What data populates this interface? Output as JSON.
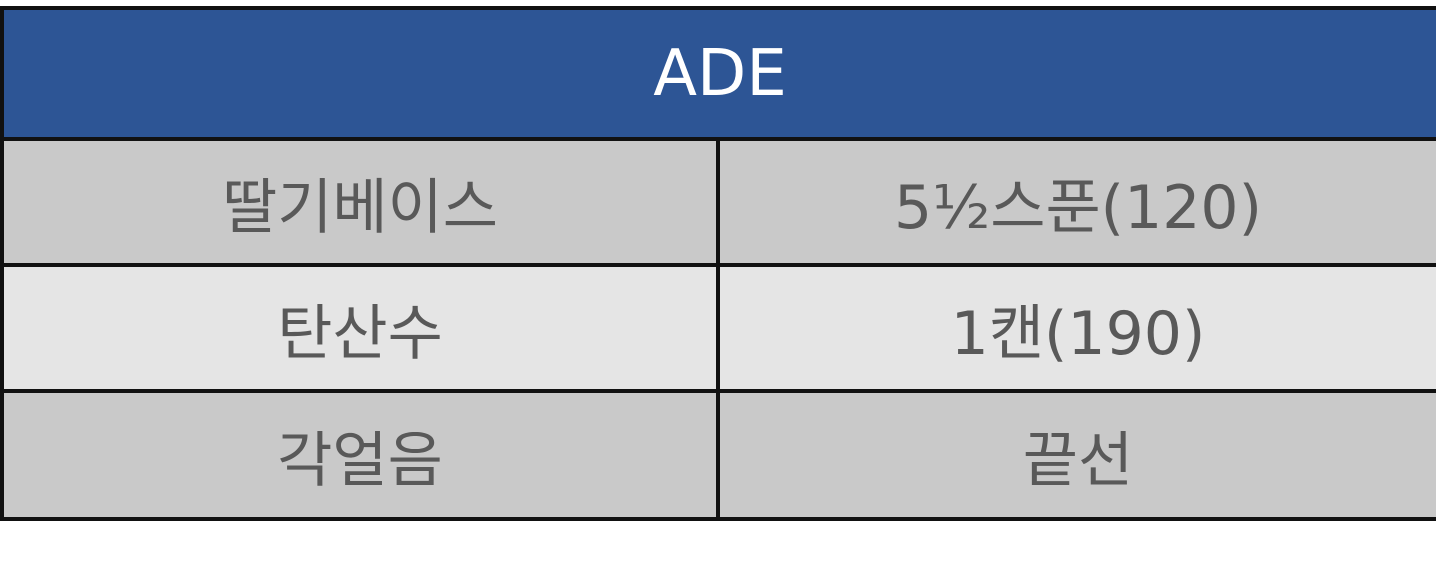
{
  "table": {
    "title": "ADE",
    "rows": [
      {
        "ingredient": "딸기베이스",
        "amount": "5½스푼(120)"
      },
      {
        "ingredient": "탄산수",
        "amount": "1캔(190)"
      },
      {
        "ingredient": "각얼음",
        "amount": "끝선"
      }
    ]
  },
  "colors": {
    "header_background": "#2d5595",
    "header_text": "#ffffff",
    "row_dark": "#c9c9c9",
    "row_light": "#e5e5e5",
    "cell_text": "#595959",
    "border": "#111111"
  }
}
